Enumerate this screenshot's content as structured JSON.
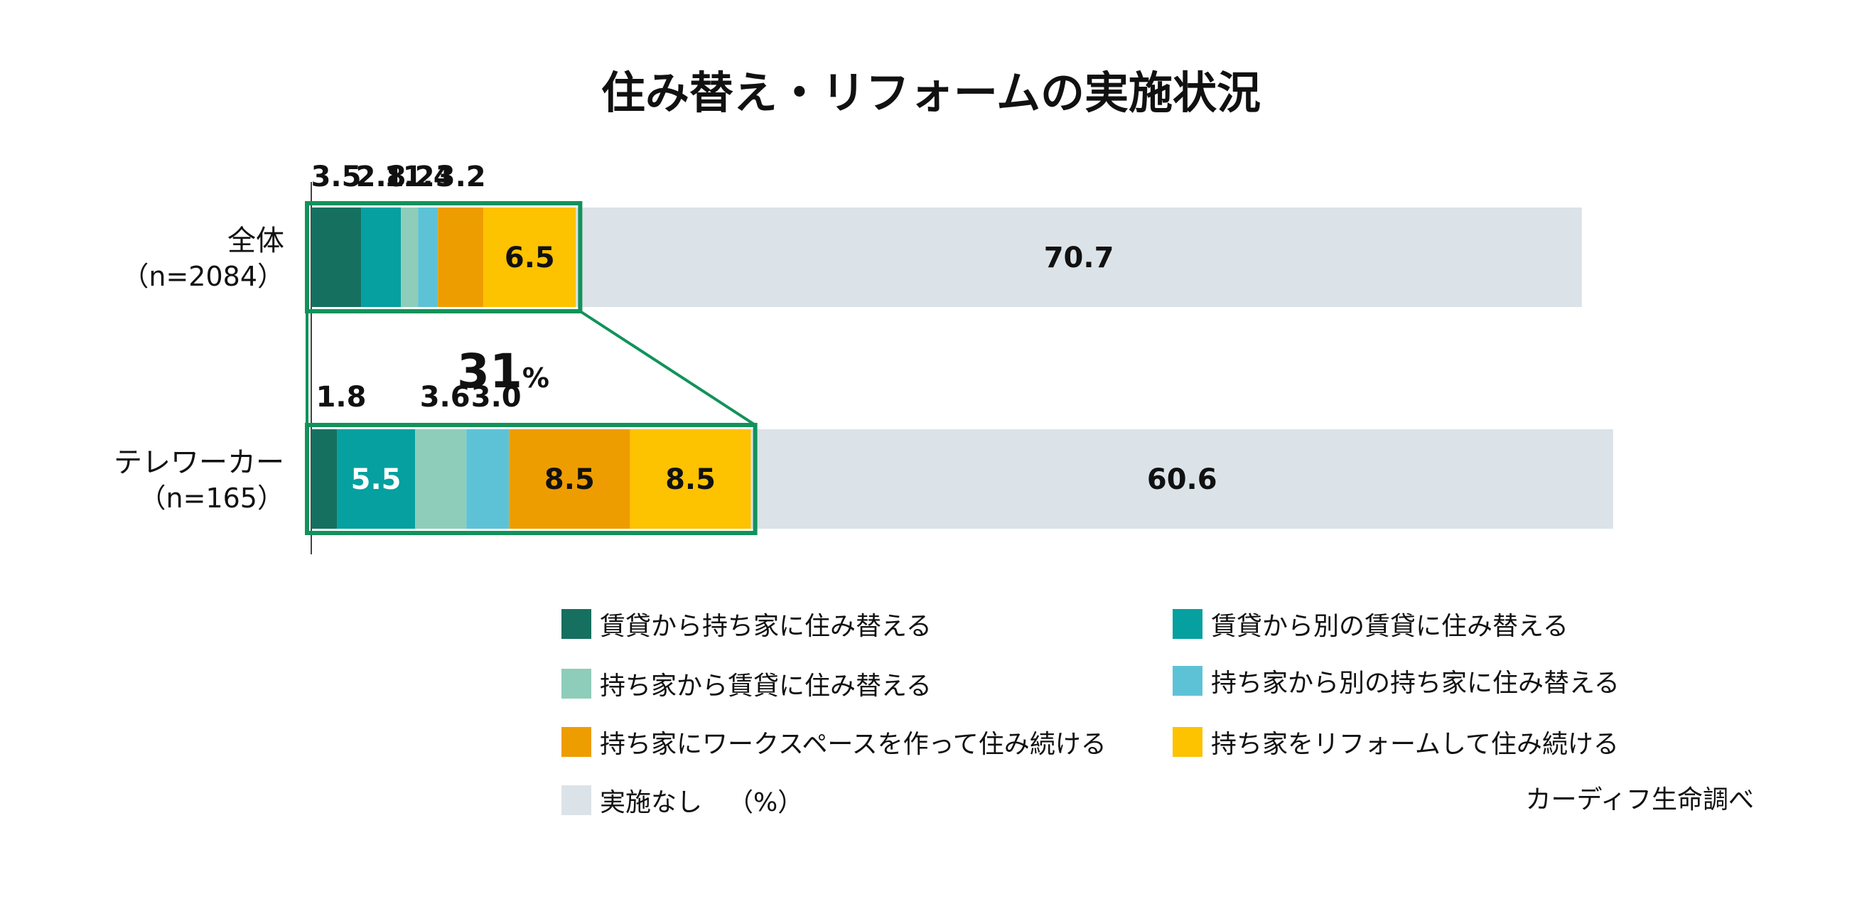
{
  "chart_data": {
    "type": "bar",
    "orientation": "horizontal",
    "stacked": true,
    "title": "住み替え・リフォームの実施状況",
    "unit_label": "（%）",
    "source": "カーディフ生命調べ",
    "categories": [
      {
        "label": "全体",
        "sublabel": "（n=2084）"
      },
      {
        "label": "テレワーカー",
        "sublabel": "（n=165）"
      }
    ],
    "series": [
      {
        "name": "賃貸から持ち家に住み替える",
        "color": "#16705f",
        "text_color": "#ffffff",
        "values": [
          3.5,
          1.8
        ]
      },
      {
        "name": "賃貸から別の賃貸に住み替える",
        "color": "#05a09f",
        "text_color": "#ffffff",
        "values": [
          2.8,
          5.5
        ]
      },
      {
        "name": "持ち家から賃貸に住み替える",
        "color": "#8ecdb9",
        "text_color": "#111111",
        "values": [
          1.2,
          3.6
        ]
      },
      {
        "name": "持ち家から別の持ち家に住み替える",
        "color": "#5ec2d6",
        "text_color": "#111111",
        "values": [
          1.4,
          3.0
        ]
      },
      {
        "name": "持ち家にワークスペースを作って住み続ける",
        "color": "#ee9d00",
        "text_color": "#111111",
        "values": [
          3.2,
          8.5
        ]
      },
      {
        "name": "持ち家をリフォームして住み続ける",
        "color": "#fdc200",
        "text_color": "#111111",
        "values": [
          6.5,
          8.5
        ]
      },
      {
        "name": "実施なし",
        "color": "#dbe3e8",
        "text_color": "#111111",
        "values": [
          70.7,
          60.6
        ]
      }
    ],
    "annotation": {
      "value": "31",
      "unit": "%"
    },
    "highlight_color": "#12925a"
  }
}
